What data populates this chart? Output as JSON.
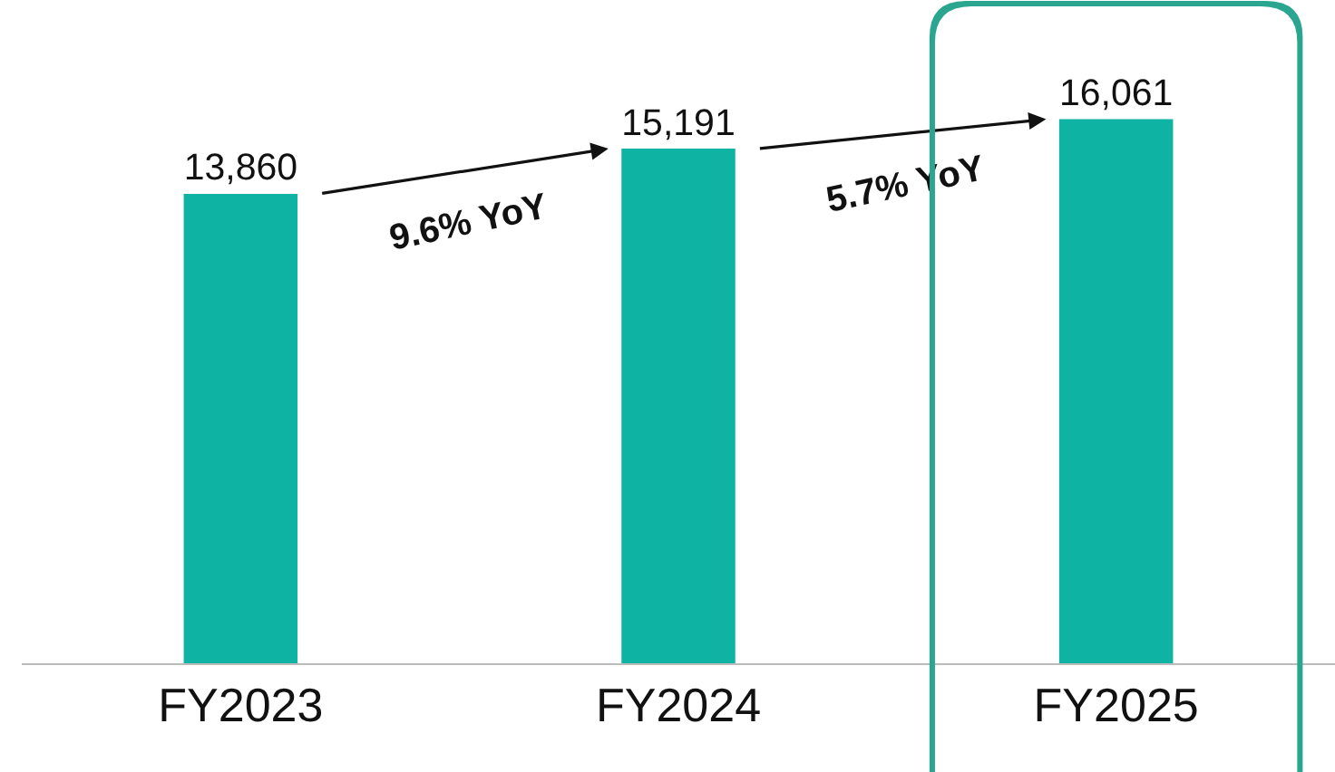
{
  "chart_data": {
    "type": "bar",
    "categories": [
      "FY2023",
      "FY2024",
      "FY2025"
    ],
    "series": [
      {
        "color": "#0fb3a3",
        "values": [
          13860,
          15191,
          16061
        ],
        "value_labels": [
          "13,860",
          "15,191",
          "16,061"
        ]
      }
    ],
    "tick_labels": "x",
    "grid": false,
    "legend": false,
    "annotations": [
      "9.6% YoY",
      "5.7% YoY"
    ]
  }
}
